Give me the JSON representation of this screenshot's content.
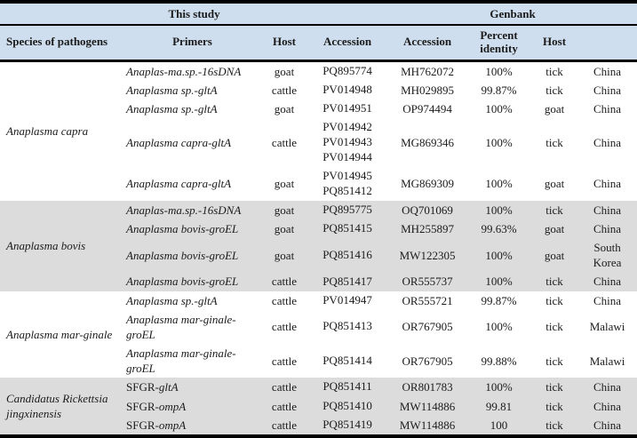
{
  "colors": {
    "header_bg": "#cfdeee",
    "shaded_row_bg": "#dcdcdc",
    "border": "#000000",
    "text": "#1b1b1b"
  },
  "table": {
    "header": {
      "group_left": "This study",
      "group_right": "Genbank",
      "columns": [
        "Species of pathogens",
        "Primers",
        "Host",
        "Accession",
        "Accession",
        "Percent identity",
        "Host",
        ""
      ]
    },
    "groups": [
      {
        "species": "Anaplasma capra",
        "shaded": false,
        "rows": [
          {
            "primer": {
              "roman": "",
              "italic": "Anaplas-ma.sp.-16sDNA"
            },
            "host": "goat",
            "accessions_study": [
              "PQ895774"
            ],
            "accession_genbank": "MH762072",
            "percent_identity": "100%",
            "genbank_host": "tick",
            "country": "China"
          },
          {
            "primer": {
              "roman": "",
              "italic": "Anaplasma sp.-gltA"
            },
            "host": "cattle",
            "accessions_study": [
              "PV014948"
            ],
            "accession_genbank": "MH029895",
            "percent_identity": "99.87%",
            "genbank_host": "tick",
            "country": "China"
          },
          {
            "primer": {
              "roman": "",
              "italic": "Anaplasma sp.-gltA"
            },
            "host": "goat",
            "accessions_study": [
              "PV014951"
            ],
            "accession_genbank": "OP974494",
            "percent_identity": "100%",
            "genbank_host": "goat",
            "country": "China"
          },
          {
            "primer": {
              "roman": "",
              "italic": "Anaplasma capra-gltA"
            },
            "host": "cattle",
            "accessions_study": [
              "PV014942",
              "PV014943",
              "PV014944"
            ],
            "accession_genbank": "MG869346",
            "percent_identity": "100%",
            "genbank_host": "tick",
            "country": "China"
          },
          {
            "primer": {
              "roman": "",
              "italic": "Anaplasma capra-gltA"
            },
            "host": "goat",
            "accessions_study": [
              "PV014945",
              "PQ851412"
            ],
            "accession_genbank": "MG869309",
            "percent_identity": "100%",
            "genbank_host": "goat",
            "country": "China"
          }
        ]
      },
      {
        "species": "Anaplasma bovis",
        "shaded": true,
        "rows": [
          {
            "primer": {
              "roman": "",
              "italic": "Anaplas-ma.sp.-16sDNA"
            },
            "host": "goat",
            "accessions_study": [
              "PQ895775"
            ],
            "accession_genbank": "OQ701069",
            "percent_identity": "100%",
            "genbank_host": "tick",
            "country": "China"
          },
          {
            "primer": {
              "roman": "",
              "italic": "Anaplasma bovis-groEL"
            },
            "host": "goat",
            "accessions_study": [
              "PQ851415"
            ],
            "accession_genbank": "MH255897",
            "percent_identity": "99.63%",
            "genbank_host": "goat",
            "country": "China"
          },
          {
            "primer": {
              "roman": "",
              "italic": "Anaplasma bovis-groEL"
            },
            "host": "goat",
            "accessions_study": [
              "PQ851416"
            ],
            "accession_genbank": "MW122305",
            "percent_identity": "100%",
            "genbank_host": "goat",
            "country": "South Korea"
          },
          {
            "primer": {
              "roman": "",
              "italic": "Anaplasma bovis-groEL"
            },
            "host": "cattle",
            "accessions_study": [
              "PQ851417"
            ],
            "accession_genbank": "OR555737",
            "percent_identity": "100%",
            "genbank_host": "tick",
            "country": "China"
          }
        ]
      },
      {
        "species": "Anaplasma mar-ginale",
        "shaded": false,
        "rows": [
          {
            "primer": {
              "roman": "",
              "italic": "Anaplasma sp.-gltA"
            },
            "host": "cattle",
            "accessions_study": [
              "PV014947"
            ],
            "accession_genbank": "OR555721",
            "percent_identity": "99.87%",
            "genbank_host": "tick",
            "country": "China"
          },
          {
            "primer": {
              "roman": "",
              "italic": "Anaplasma mar-ginale-groEL"
            },
            "host": "cattle",
            "accessions_study": [
              "PQ851413"
            ],
            "accession_genbank": "OR767905",
            "percent_identity": "100%",
            "genbank_host": "tick",
            "country": "Malawi"
          },
          {
            "primer": {
              "roman": "",
              "italic": "Anaplasma mar-ginale-groEL"
            },
            "host": "cattle",
            "accessions_study": [
              "PQ851414"
            ],
            "accession_genbank": "OR767905",
            "percent_identity": "99.88%",
            "genbank_host": "tick",
            "country": "Malawi"
          }
        ]
      },
      {
        "species": "Candidatus Rickettsia jingxinensis",
        "shaded": true,
        "rows": [
          {
            "primer": {
              "roman": "SFGR-",
              "italic": "gltA"
            },
            "host": "cattle",
            "accessions_study": [
              "PQ851411"
            ],
            "accession_genbank": "OR801783",
            "percent_identity": "100%",
            "genbank_host": "tick",
            "country": "China"
          },
          {
            "primer": {
              "roman": "SFGR-",
              "italic": "ompA"
            },
            "host": "cattle",
            "accessions_study": [
              "PQ851410"
            ],
            "accession_genbank": "MW114886",
            "percent_identity": "99.81",
            "genbank_host": "tick",
            "country": "China"
          },
          {
            "primer": {
              "roman": "SFGR-",
              "italic": "ompA"
            },
            "host": "cattle",
            "accessions_study": [
              "PQ851419"
            ],
            "accession_genbank": "MW114886",
            "percent_identity": "100",
            "genbank_host": "tick",
            "country": "China"
          }
        ]
      }
    ]
  }
}
